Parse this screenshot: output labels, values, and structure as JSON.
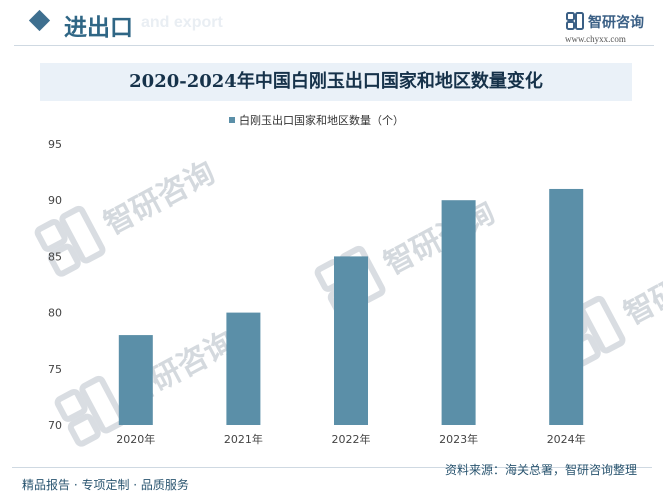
{
  "header": {
    "section_title": "进出口",
    "section_subtitle_en": "and export",
    "brand_name": "智研咨询",
    "brand_url": "www.chyxx.com"
  },
  "title": "2020-2024年中国白刚玉出口国家和地区数量变化",
  "watermark": "智研咨询",
  "footer": {
    "left": "精品报告 · 专项定制 · 品质服务",
    "source": "资料来源：海关总署，智研咨询整理"
  },
  "chart_data": {
    "type": "bar",
    "categories": [
      "2020年",
      "2021年",
      "2022年",
      "2023年",
      "2024年"
    ],
    "series": [
      {
        "name": "白刚玉出口国家和地区数量（个）",
        "values": [
          78,
          80,
          85,
          90,
          91
        ]
      }
    ],
    "ylim": [
      70,
      95
    ],
    "yticks": [
      70,
      75,
      80,
      85,
      90,
      95
    ],
    "grid": false,
    "legend": "top-center",
    "colors": {
      "bar": "#5b8fa8",
      "axis_text": "#444444",
      "title_bg": "#eaf1f8"
    }
  }
}
